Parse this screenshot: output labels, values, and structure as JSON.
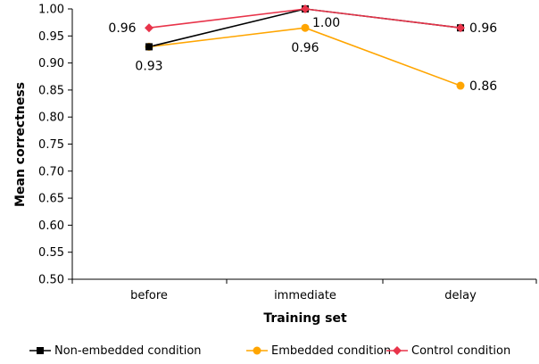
{
  "chart_data": {
    "type": "line",
    "title": "",
    "xlabel": "Training set",
    "ylabel": "Mean correctness",
    "categories": [
      "before",
      "immediate",
      "delay"
    ],
    "ylim": [
      0.5,
      1.0
    ],
    "yticks": [
      "0.50",
      "0.55",
      "0.60",
      "0.65",
      "0.70",
      "0.75",
      "0.80",
      "0.85",
      "0.90",
      "0.95",
      "1.00"
    ],
    "grid": false,
    "legend_position": "bottom",
    "series": [
      {
        "name": "Non-embedded condition",
        "values": [
          0.93,
          1.0,
          0.965
        ],
        "color": "#000000",
        "marker": "square"
      },
      {
        "name": "Embedded condition",
        "values": [
          0.93,
          0.965,
          0.858
        ],
        "color": "#FFA500",
        "marker": "circle"
      },
      {
        "name": "Control condition",
        "values": [
          0.965,
          1.0,
          0.965
        ],
        "color": "#E8344A",
        "marker": "diamond"
      }
    ],
    "data_labels": [
      {
        "text": "0.96",
        "category": "before",
        "value": 0.965
      },
      {
        "text": "0.93",
        "category": "before",
        "value": 0.93
      },
      {
        "text": "1.00",
        "category": "immediate",
        "value": 1.0
      },
      {
        "text": "0.96",
        "category": "immediate",
        "value": 0.965
      },
      {
        "text": "0.96",
        "category": "delay",
        "value": 0.965
      },
      {
        "text": "0.86",
        "category": "delay",
        "value": 0.858
      }
    ]
  }
}
